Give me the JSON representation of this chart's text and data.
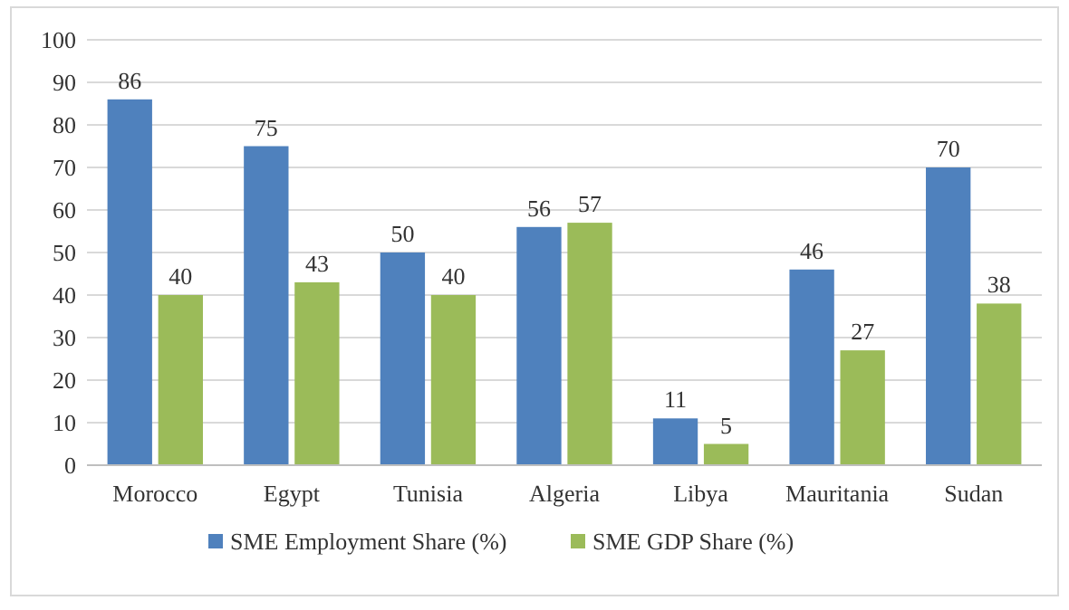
{
  "chart_data": {
    "type": "bar",
    "categories": [
      "Morocco",
      "Egypt",
      "Tunisia",
      "Algeria",
      "Libya",
      "Mauritania",
      "Sudan"
    ],
    "series": [
      {
        "name": "SME Employment Share (%)",
        "color": "#4f81bd",
        "values": [
          86,
          75,
          50,
          56,
          11,
          46,
          70
        ]
      },
      {
        "name": "SME GDP Share (%)",
        "color": "#9bbb59",
        "values": [
          40,
          43,
          40,
          57,
          5,
          27,
          38
        ]
      }
    ],
    "ylim": [
      0,
      100
    ],
    "yticks": [
      0,
      10,
      20,
      30,
      40,
      50,
      60,
      70,
      80,
      90,
      100
    ],
    "grid": "y",
    "legend": "bottom",
    "data_labels": true
  }
}
